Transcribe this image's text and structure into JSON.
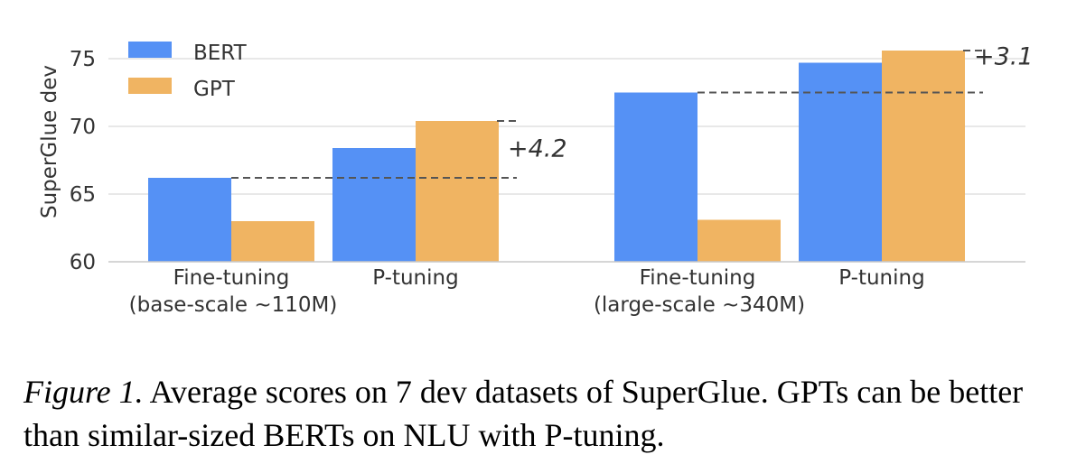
{
  "chart_data": {
    "type": "bar",
    "ylabel": "SuperGlue dev",
    "ylim": [
      60,
      78
    ],
    "yticks": [
      "60",
      "65",
      "70",
      "75"
    ],
    "grid": "horizontal",
    "legend_position": "top-left",
    "groups": [
      {
        "label_line1": "Fine-tuning",
        "label_line2": "(base-scale ~110M)"
      },
      {
        "label_line1": "P-tuning",
        "label_line2": ""
      },
      {
        "label_line1": "Fine-tuning",
        "label_line2": "(large-scale ~340M)"
      },
      {
        "label_line1": "P-tuning",
        "label_line2": ""
      }
    ],
    "series": [
      {
        "name": "BERT",
        "color": "#5591f5",
        "values": [
          66.2,
          68.4,
          72.5,
          74.7
        ]
      },
      {
        "name": "GPT",
        "color": "#f0b462",
        "values": [
          63.0,
          70.4,
          63.1,
          75.6
        ]
      }
    ],
    "annotations": [
      {
        "text": "+4.2",
        "from_value": 66.2,
        "to_value": 70.4
      },
      {
        "text": "+3.1",
        "from_value": 72.5,
        "to_value": 75.6
      }
    ]
  },
  "caption": {
    "label": "Figure 1.",
    "text": " Average scores on 7 dev datasets of SuperGlue. GPTs can be better than similar-sized BERTs on NLU with P-tuning."
  }
}
